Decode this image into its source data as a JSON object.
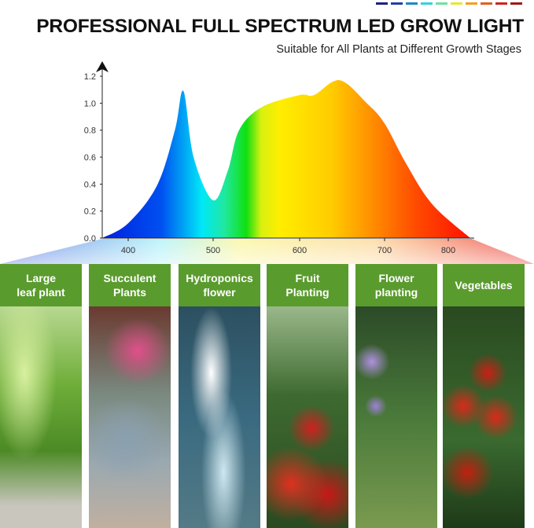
{
  "header": {
    "title": "PROFESSIONAL FULL SPECTRUM LED GROW LIGHT",
    "subtitle": "Suitable for All Plants at Different Growth Stages",
    "color_bar": [
      "#1a237e",
      "#1f3fa8",
      "#1e88c8",
      "#33d1e0",
      "#6fe0a0",
      "#e6e833",
      "#f0a020",
      "#e06020",
      "#d02020",
      "#a01818"
    ]
  },
  "chart_data": {
    "type": "area",
    "title": "",
    "xlabel": "",
    "ylabel": "",
    "x_ticks": [
      400,
      500,
      600,
      700,
      800
    ],
    "y_ticks": [
      "0.0",
      "0.2",
      "0.4",
      "0.6",
      "0.8",
      "1.0",
      "1.2"
    ],
    "ylim": [
      0,
      1.2
    ],
    "xlim": [
      370,
      840
    ],
    "grid": false,
    "fill": "visible-spectrum gradient (blue to red)",
    "points": [
      [
        370,
        0
      ],
      [
        400,
        0.11
      ],
      [
        434,
        0.39
      ],
      [
        455,
        0.8
      ],
      [
        465,
        1.09
      ],
      [
        477,
        0.6
      ],
      [
        500,
        0.28
      ],
      [
        517,
        0.5
      ],
      [
        530,
        0.8
      ],
      [
        556,
        0.97
      ],
      [
        600,
        1.06
      ],
      [
        617,
        1.06
      ],
      [
        647,
        1.17
      ],
      [
        679,
        1.0
      ],
      [
        700,
        0.85
      ],
      [
        734,
        0.55
      ],
      [
        775,
        0.25
      ],
      [
        835,
        0
      ]
    ]
  },
  "panels": [
    {
      "label": "Large leaf plant",
      "line1": "Large",
      "line2": "leaf plant"
    },
    {
      "label": "Succulent Plants",
      "line1": "Succulent",
      "line2": "Plants"
    },
    {
      "label": "Hydroponics flower",
      "line1": "Hydroponics",
      "line2": "flower"
    },
    {
      "label": "Fruit Planting",
      "line1": "Fruit",
      "line2": "Planting"
    },
    {
      "label": "Flower planting",
      "line1": "Flower",
      "line2": "planting"
    },
    {
      "label": "Vegetables",
      "line1": "Vegetables",
      "line2": ""
    }
  ]
}
